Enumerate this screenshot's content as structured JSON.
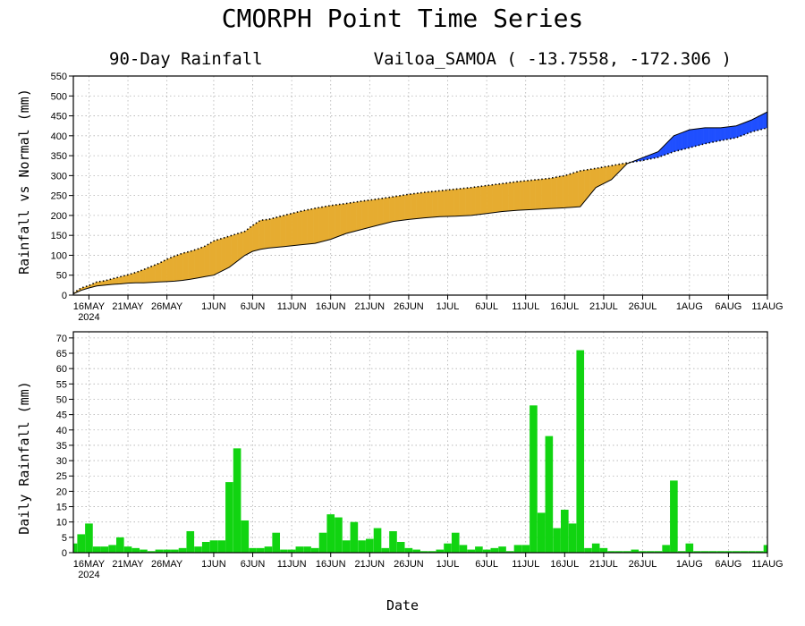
{
  "title": "CMORPH Point Time Series",
  "subtitle_left": "90-Day Rainfall",
  "subtitle_right": "Vailoa_SAMOA ( -13.7558, -172.306 )",
  "xlabel": "Date",
  "colors": {
    "surplus": "#e6ac30",
    "deficit": "#1f4fff",
    "bars": "#11d411",
    "frame": "#000000",
    "grid": "#b0b0b0"
  },
  "x_ticks": [
    "16MAY",
    "21MAY",
    "26MAY",
    "1JUN",
    "6JUN",
    "11JUN",
    "16JUN",
    "21JUN",
    "26JUN",
    "1JUL",
    "6JUL",
    "11JUL",
    "16JUL",
    "21JUL",
    "26JUL",
    "1AUG",
    "6AUG",
    "11AUG"
  ],
  "x_year_label": "2024",
  "chart_data": [
    {
      "type": "area",
      "title": "90-Day Rainfall",
      "ylabel": "Rainfall vs Normal (mm)",
      "ylim": [
        0,
        550
      ],
      "y_ticks": [
        0,
        50,
        100,
        150,
        200,
        250,
        300,
        350,
        400,
        450,
        500,
        550
      ],
      "x_range": [
        "2024-05-14",
        "2024-08-11"
      ],
      "grid": true,
      "series": [
        {
          "name": "",
          "style": "dotted",
          "points": [
            [
              "2024-05-14",
              5
            ],
            [
              "2024-05-15",
              18
            ],
            [
              "2024-05-16",
              24
            ],
            [
              "2024-05-17",
              33
            ],
            [
              "2024-05-18",
              36
            ],
            [
              "2024-05-19",
              41
            ],
            [
              "2024-05-20",
              46
            ],
            [
              "2024-05-21",
              51
            ],
            [
              "2024-05-22",
              57
            ],
            [
              "2024-05-23",
              64
            ],
            [
              "2024-05-24",
              72
            ],
            [
              "2024-05-25",
              80
            ],
            [
              "2024-05-26",
              90
            ],
            [
              "2024-05-27",
              98
            ],
            [
              "2024-05-28",
              105
            ],
            [
              "2024-05-29",
              110
            ],
            [
              "2024-05-30",
              116
            ],
            [
              "2024-05-31",
              124
            ],
            [
              "2024-06-01",
              136
            ],
            [
              "2024-06-03",
              148
            ],
            [
              "2024-06-05",
              160
            ],
            [
              "2024-06-06",
              175
            ],
            [
              "2024-06-07",
              188
            ],
            [
              "2024-06-08",
              190
            ],
            [
              "2024-06-10",
              200
            ],
            [
              "2024-06-12",
              210
            ],
            [
              "2024-06-14",
              218
            ],
            [
              "2024-06-16",
              225
            ],
            [
              "2024-06-18",
              230
            ],
            [
              "2024-06-20",
              236
            ],
            [
              "2024-06-22",
              241
            ],
            [
              "2024-06-24",
              247
            ],
            [
              "2024-06-26",
              253
            ],
            [
              "2024-06-28",
              258
            ],
            [
              "2024-06-30",
              262
            ],
            [
              "2024-07-02",
              266
            ],
            [
              "2024-07-04",
              270
            ],
            [
              "2024-07-06",
              275
            ],
            [
              "2024-07-08",
              280
            ],
            [
              "2024-07-10",
              285
            ],
            [
              "2024-07-12",
              289
            ],
            [
              "2024-07-14",
              293
            ],
            [
              "2024-07-16",
              300
            ],
            [
              "2024-07-18",
              312
            ],
            [
              "2024-07-20",
              318
            ],
            [
              "2024-07-22",
              325
            ],
            [
              "2024-07-24",
              332
            ],
            [
              "2024-07-26",
              338
            ],
            [
              "2024-07-28",
              346
            ],
            [
              "2024-07-30",
              360
            ],
            [
              "2024-08-01",
              370
            ],
            [
              "2024-08-03",
              380
            ],
            [
              "2024-08-05",
              388
            ],
            [
              "2024-08-07",
              395
            ],
            [
              "2024-08-09",
              410
            ],
            [
              "2024-08-11",
              420
            ]
          ]
        },
        {
          "name": "",
          "style": "solid",
          "points": [
            [
              "2024-05-14",
              3
            ],
            [
              "2024-05-15",
              12
            ],
            [
              "2024-05-16",
              18
            ],
            [
              "2024-05-17",
              23
            ],
            [
              "2024-05-18",
              25
            ],
            [
              "2024-05-19",
              27
            ],
            [
              "2024-05-20",
              28
            ],
            [
              "2024-05-21",
              30
            ],
            [
              "2024-05-22",
              31
            ],
            [
              "2024-05-23",
              31
            ],
            [
              "2024-05-24",
              32
            ],
            [
              "2024-05-25",
              33
            ],
            [
              "2024-05-26",
              34
            ],
            [
              "2024-05-27",
              35
            ],
            [
              "2024-05-28",
              37
            ],
            [
              "2024-05-29",
              40
            ],
            [
              "2024-05-30",
              43
            ],
            [
              "2024-05-31",
              47
            ],
            [
              "2024-06-01",
              50
            ],
            [
              "2024-06-03",
              70
            ],
            [
              "2024-06-05",
              100
            ],
            [
              "2024-06-06",
              110
            ],
            [
              "2024-06-07",
              115
            ],
            [
              "2024-06-08",
              118
            ],
            [
              "2024-06-10",
              122
            ],
            [
              "2024-06-12",
              126
            ],
            [
              "2024-06-14",
              130
            ],
            [
              "2024-06-16",
              140
            ],
            [
              "2024-06-18",
              155
            ],
            [
              "2024-06-20",
              165
            ],
            [
              "2024-06-22",
              175
            ],
            [
              "2024-06-24",
              185
            ],
            [
              "2024-06-26",
              190
            ],
            [
              "2024-06-28",
              194
            ],
            [
              "2024-06-30",
              197
            ],
            [
              "2024-07-02",
              198
            ],
            [
              "2024-07-04",
              200
            ],
            [
              "2024-07-06",
              205
            ],
            [
              "2024-07-08",
              210
            ],
            [
              "2024-07-10",
              213
            ],
            [
              "2024-07-12",
              215
            ],
            [
              "2024-07-14",
              217
            ],
            [
              "2024-07-16",
              219
            ],
            [
              "2024-07-18",
              222
            ],
            [
              "2024-07-20",
              270
            ],
            [
              "2024-07-22",
              290
            ],
            [
              "2024-07-24",
              330
            ],
            [
              "2024-07-26",
              345
            ],
            [
              "2024-07-28",
              360
            ],
            [
              "2024-07-30",
              400
            ],
            [
              "2024-08-01",
              415
            ],
            [
              "2024-08-03",
              420
            ],
            [
              "2024-08-05",
              420
            ],
            [
              "2024-08-07",
              425
            ],
            [
              "2024-08-09",
              440
            ],
            [
              "2024-08-11",
              460
            ]
          ]
        }
      ]
    },
    {
      "type": "bar",
      "ylabel": "Daily Rainfall (mm)",
      "ylim": [
        0,
        72
      ],
      "y_ticks": [
        0,
        5,
        10,
        15,
        20,
        25,
        30,
        35,
        40,
        45,
        50,
        55,
        60,
        65,
        70
      ],
      "grid": true,
      "x_start": "2024-05-14",
      "values": [
        3,
        6,
        9.5,
        2,
        2,
        2.5,
        5,
        2,
        1.5,
        1,
        0.5,
        1,
        1,
        1,
        1.5,
        7,
        2,
        3.5,
        4,
        4,
        23,
        34,
        10.5,
        1.5,
        1.5,
        2,
        6.5,
        1,
        1,
        2,
        2,
        1.5,
        6.5,
        12.5,
        11.5,
        4,
        10,
        4,
        4.5,
        8,
        1.5,
        7,
        3.5,
        1.5,
        1,
        0.5,
        0.5,
        1,
        3,
        6.5,
        2.5,
        1,
        2,
        1,
        1.5,
        2,
        0.5,
        2.5,
        2.5,
        48,
        13,
        38,
        8,
        14,
        9.5,
        66,
        1.5,
        3,
        1.5,
        0.5,
        0.5,
        0.5,
        1,
        0.5,
        0.5,
        0.5,
        2.5,
        23.5,
        0.5,
        3,
        0.5,
        0.5,
        0.5,
        0.5,
        0.5,
        0.5,
        0.5,
        0.5,
        0.5,
        2.5
      ]
    }
  ]
}
